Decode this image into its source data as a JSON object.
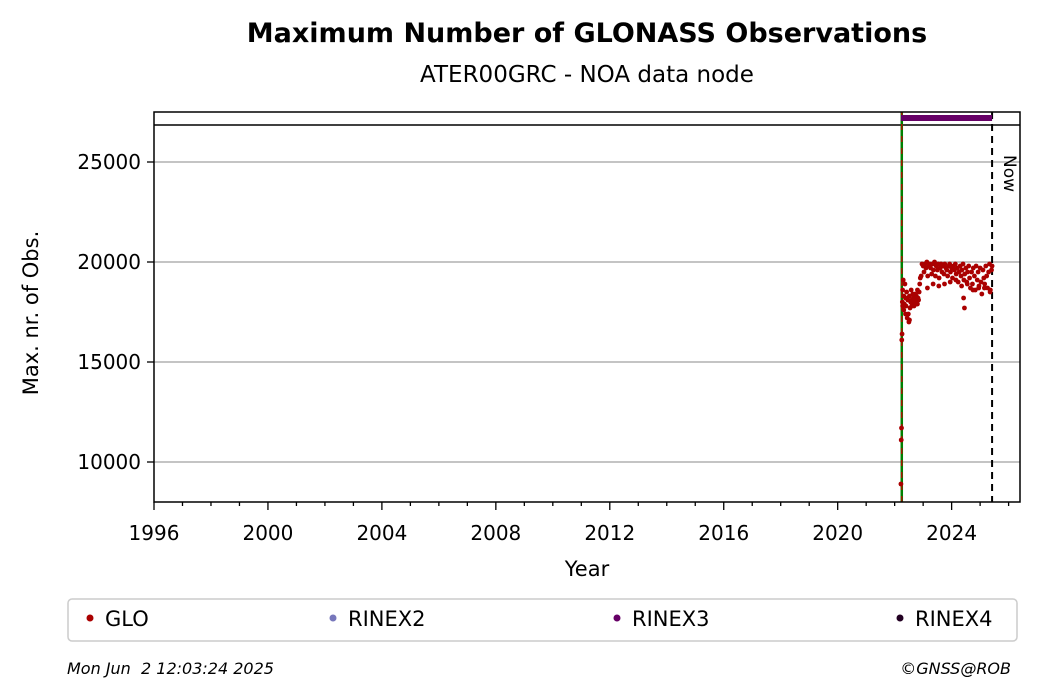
{
  "chart_data": {
    "type": "scatter",
    "title": "Maximum Number of GLONASS Observations",
    "subtitle": "ATER00GRC - NOA data node",
    "xlabel": "Year",
    "ylabel": "Max. nr. of Obs.",
    "xlim": [
      1996,
      2026.4
    ],
    "ylim": [
      8000,
      27500
    ],
    "x_ticks": [
      1996,
      2000,
      2004,
      2008,
      2012,
      2016,
      2020,
      2024
    ],
    "y_ticks": [
      10000,
      15000,
      20000,
      25000
    ],
    "y_grid": true,
    "legend_placement": "bottom",
    "now_label": "Now",
    "now_year": 2025.42,
    "green_line_year": 2022.25,
    "top_band_value": 26850,
    "series": [
      {
        "name": "GLO",
        "color": "#aa0000",
        "x": [
          2022.22,
          2022.23,
          2022.24,
          2022.25,
          2022.26,
          2022.27,
          2022.28,
          2022.3,
          2022.32,
          2022.34,
          2022.36,
          2022.38,
          2022.4,
          2022.42,
          2022.44,
          2022.46,
          2022.48,
          2022.5,
          2022.52,
          2022.54,
          2022.56,
          2022.58,
          2022.6,
          2022.62,
          2022.64,
          2022.66,
          2022.68,
          2022.7,
          2022.72,
          2022.74,
          2022.76,
          2022.78,
          2022.8,
          2022.82,
          2022.84,
          2022.86,
          2022.88,
          2022.9,
          2022.93,
          2022.96,
          2023.0,
          2023.03,
          2023.06,
          2023.1,
          2023.13,
          2023.16,
          2023.2,
          2023.23,
          2023.26,
          2023.3,
          2023.33,
          2023.36,
          2023.4,
          2023.43,
          2023.46,
          2023.5,
          2023.53,
          2023.56,
          2023.6,
          2023.63,
          2023.66,
          2023.7,
          2023.73,
          2023.76,
          2023.8,
          2023.83,
          2023.86,
          2023.9,
          2023.93,
          2023.96,
          2024.0,
          2024.03,
          2024.06,
          2024.1,
          2024.13,
          2024.16,
          2024.2,
          2024.23,
          2024.26,
          2024.3,
          2024.33,
          2024.36,
          2024.4,
          2024.43,
          2024.46,
          2024.5,
          2024.53,
          2024.56,
          2024.6,
          2024.63,
          2024.66,
          2024.7,
          2024.73,
          2024.76,
          2024.8,
          2024.83,
          2024.86,
          2024.9,
          2024.93,
          2024.96,
          2025.0,
          2025.03,
          2025.06,
          2025.1,
          2025.13,
          2025.16,
          2025.2,
          2025.23,
          2025.26,
          2025.3,
          2025.33,
          2025.36,
          2025.4,
          2025.42,
          2022.28,
          2022.32,
          2022.38,
          2022.45,
          2022.52,
          2022.6,
          2022.7,
          2022.8,
          2023.15,
          2023.35,
          2023.55,
          2023.75,
          2023.95,
          2024.15,
          2024.35,
          2024.55,
          2024.75,
          2024.95,
          2025.15,
          2025.35,
          2024.42,
          2024.45
        ],
        "y": [
          8900,
          11100,
          11700,
          16100,
          16400,
          18000,
          18600,
          19100,
          18300,
          17900,
          18900,
          18200,
          17800,
          18500,
          17200,
          18100,
          17400,
          17000,
          18300,
          17700,
          18000,
          18600,
          18100,
          17900,
          18400,
          18200,
          17800,
          18100,
          18400,
          18000,
          18300,
          17900,
          18600,
          18200,
          18100,
          18500,
          18900,
          19200,
          19300,
          19900,
          19800,
          19500,
          19900,
          19700,
          20000,
          19300,
          19800,
          19900,
          19700,
          19400,
          19900,
          19600,
          20000,
          19300,
          19800,
          19600,
          19900,
          19200,
          19700,
          19900,
          19500,
          19800,
          19400,
          19900,
          19700,
          19600,
          19300,
          19800,
          19900,
          19500,
          19700,
          19200,
          19800,
          19600,
          19900,
          19400,
          19700,
          19000,
          19500,
          19800,
          19300,
          19600,
          19900,
          19100,
          19400,
          19700,
          19000,
          19500,
          19800,
          19200,
          18700,
          19500,
          18900,
          19700,
          19300,
          18600,
          19800,
          19100,
          19500,
          18800,
          19700,
          19000,
          18400,
          19600,
          19200,
          18900,
          19800,
          19300,
          18700,
          19500,
          19900,
          18600,
          19600,
          19800,
          17800,
          17600,
          17400,
          18200,
          17100,
          17800,
          18000,
          17900,
          18700,
          18900,
          18800,
          18900,
          19000,
          19100,
          18800,
          18900,
          18600,
          18700,
          18700,
          18500,
          18200,
          17700
        ]
      },
      {
        "name": "RINEX2",
        "color": "#7777bb",
        "x": [],
        "y": []
      },
      {
        "name": "RINEX3",
        "color": "#660066",
        "x_range": [
          2022.22,
          2025.42
        ],
        "y_value": 27200
      },
      {
        "name": "RINEX4",
        "color": "#220022",
        "x": [],
        "y": []
      }
    ]
  },
  "footer": {
    "timestamp": "Mon Jun  2 12:03:24 2025",
    "credit": "©GNSS@ROB"
  }
}
